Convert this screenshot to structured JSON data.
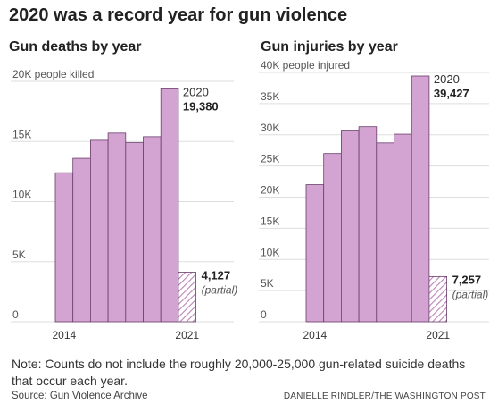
{
  "title": "2020 was a record year for gun violence",
  "note": "Note: Counts do not include the roughly 20,000-25,000 gun-related suicide deaths that occur each year.",
  "source": "Source: Gun Violence Archive",
  "credit": "DANIELLE RINDLER/THE WASHINGTON POST",
  "colors": {
    "bar": "#d3a4d1",
    "bar_stroke": "#6a3d6a",
    "partial_hatch": "#b985b8",
    "gridline": "#dddddd",
    "text": "#222222"
  },
  "chart_data": [
    {
      "type": "bar",
      "title": "Gun deaths by year",
      "ylabel": "20K people killed",
      "ylim": [
        0,
        20000
      ],
      "yticks": [
        0,
        5000,
        10000,
        15000,
        20000
      ],
      "ytick_labels": [
        "0",
        "5K",
        "10K",
        "15K",
        "20K"
      ],
      "x_tick_labels": [
        "2014",
        "2021"
      ],
      "categories": [
        "2014",
        "2015",
        "2016",
        "2017",
        "2018",
        "2019",
        "2020",
        "2021"
      ],
      "values": [
        12400,
        13600,
        15100,
        15700,
        14900,
        15400,
        19380,
        4127
      ],
      "partial": [
        false,
        false,
        false,
        false,
        false,
        false,
        false,
        true
      ],
      "annotations": [
        {
          "category": "2020",
          "year_label": "2020",
          "value_label": "19,380"
        },
        {
          "category": "2021",
          "value_label": "4,127",
          "sub_label": "(partial)"
        }
      ]
    },
    {
      "type": "bar",
      "title": "Gun injuries by year",
      "ylabel": "40K people injured",
      "ylim": [
        0,
        40000
      ],
      "yticks": [
        0,
        5000,
        10000,
        15000,
        20000,
        25000,
        30000,
        35000,
        40000
      ],
      "ytick_labels": [
        "0",
        "5K",
        "10K",
        "15K",
        "20K",
        "25K",
        "30K",
        "35K",
        "40K"
      ],
      "x_tick_labels": [
        "2014",
        "2021"
      ],
      "categories": [
        "2014",
        "2015",
        "2016",
        "2017",
        "2018",
        "2019",
        "2020",
        "2021"
      ],
      "values": [
        22000,
        27000,
        30600,
        31300,
        28700,
        30100,
        39427,
        7257
      ],
      "partial": [
        false,
        false,
        false,
        false,
        false,
        false,
        false,
        true
      ],
      "annotations": [
        {
          "category": "2020",
          "year_label": "2020",
          "value_label": "39,427"
        },
        {
          "category": "2021",
          "value_label": "7,257",
          "sub_label": "(partial)"
        }
      ]
    }
  ]
}
